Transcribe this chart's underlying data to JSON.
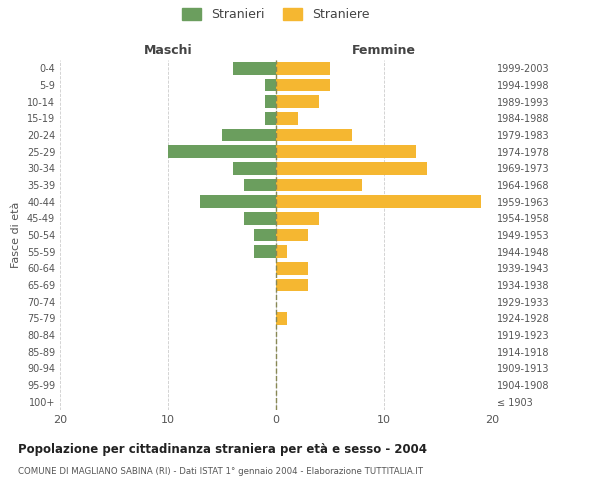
{
  "age_groups": [
    "100+",
    "95-99",
    "90-94",
    "85-89",
    "80-84",
    "75-79",
    "70-74",
    "65-69",
    "60-64",
    "55-59",
    "50-54",
    "45-49",
    "40-44",
    "35-39",
    "30-34",
    "25-29",
    "20-24",
    "15-19",
    "10-14",
    "5-9",
    "0-4"
  ],
  "birth_years": [
    "≤ 1903",
    "1904-1908",
    "1909-1913",
    "1914-1918",
    "1919-1923",
    "1924-1928",
    "1929-1933",
    "1934-1938",
    "1939-1943",
    "1944-1948",
    "1949-1953",
    "1954-1958",
    "1959-1963",
    "1964-1968",
    "1969-1973",
    "1974-1978",
    "1979-1983",
    "1984-1988",
    "1989-1993",
    "1994-1998",
    "1999-2003"
  ],
  "maschi": [
    0,
    0,
    0,
    0,
    0,
    0,
    0,
    0,
    0,
    2,
    2,
    3,
    7,
    3,
    4,
    10,
    5,
    1,
    1,
    1,
    4
  ],
  "femmine": [
    0,
    0,
    0,
    0,
    0,
    1,
    0,
    3,
    3,
    1,
    3,
    4,
    19,
    8,
    14,
    13,
    7,
    2,
    4,
    5,
    5
  ],
  "color_maschi": "#6b9e5e",
  "color_femmine": "#f5b731",
  "title": "Popolazione per cittadinanza straniera per età e sesso - 2004",
  "subtitle": "COMUNE DI MAGLIANO SABINA (RI) - Dati ISTAT 1° gennaio 2004 - Elaborazione TUTTITALIA.IT",
  "ylabel_left": "Fasce di età",
  "xlabel_maschi": "Maschi",
  "xlabel_femmine": "Femmine",
  "legend_maschi": "Stranieri",
  "legend_femmine": "Straniere",
  "xlim": 20,
  "background_color": "#ffffff",
  "grid_color": "#cccccc"
}
